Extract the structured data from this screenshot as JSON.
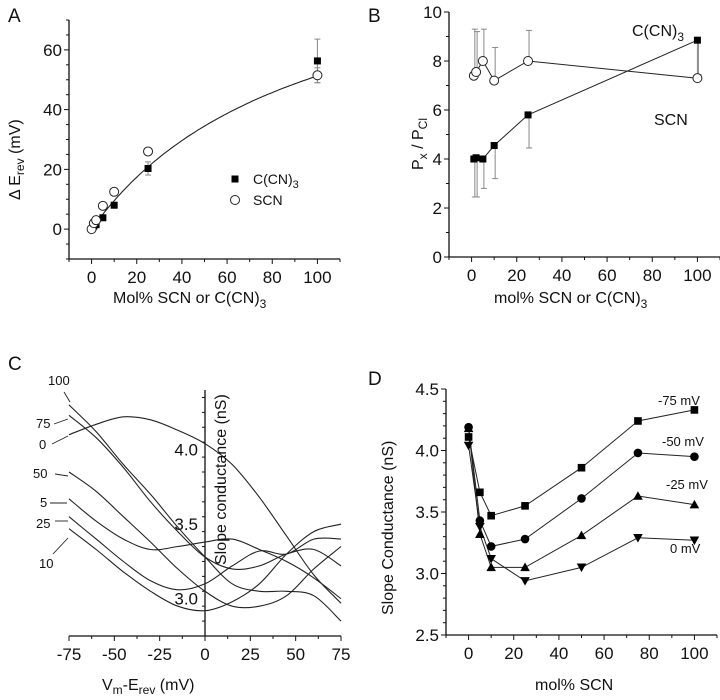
{
  "chart_data": [
    {
      "panel": "A",
      "type": "scatter",
      "title": "",
      "xlabel": "Mol% SCN or C(CN)3",
      "ylabel": "Δ E_rev (mV)",
      "xlim": [
        -10,
        110
      ],
      "ylim": [
        -10,
        70
      ],
      "xticks": [
        0,
        20,
        40,
        60,
        80,
        100
      ],
      "yticks": [
        0,
        20,
        40,
        60
      ],
      "grid": false,
      "legend_position": "center-right",
      "series": [
        {
          "name": "C(CN)3",
          "marker": "filled-square",
          "x": [
            1,
            2,
            5,
            10,
            25,
            100
          ],
          "y": [
            1,
            1.5,
            3.8,
            8,
            20.3,
            56.3
          ],
          "err": [
            0,
            0,
            0,
            0,
            2.2,
            7.3
          ]
        },
        {
          "name": "SCN",
          "marker": "open-circle",
          "x": [
            0,
            1,
            2,
            5,
            10,
            25,
            100
          ],
          "y": [
            0,
            2,
            3,
            7.8,
            12.5,
            26,
            51.5
          ],
          "err": [
            0,
            0,
            0,
            0,
            0,
            1,
            2.5
          ]
        }
      ],
      "fit_curve": {
        "name": "SCN fit",
        "note": "saturating fit through SCN points"
      }
    },
    {
      "panel": "B",
      "type": "line",
      "xlabel": "mol% SCN or C(CN)3",
      "ylabel": "P_x / P_Cl",
      "xlim": [
        -10,
        110
      ],
      "ylim": [
        0,
        10
      ],
      "xticks": [
        0,
        20,
        40,
        60,
        80,
        100
      ],
      "yticks": [
        0,
        2,
        4,
        6,
        8,
        10
      ],
      "grid": false,
      "annotations": [
        {
          "text": "C(CN)3",
          "position": "top-right"
        },
        {
          "text": "SCN",
          "position": "right"
        }
      ],
      "series": [
        {
          "name": "SCN",
          "marker": "open-circle",
          "x": [
            1,
            2,
            5,
            10,
            25,
            100
          ],
          "y": [
            7.4,
            7.55,
            8.0,
            7.2,
            8.0,
            7.3
          ],
          "err": [
            1.9,
            1.65,
            1.3,
            1.35,
            1.25,
            0
          ]
        },
        {
          "name": "C(CN)3",
          "marker": "filled-square",
          "x": [
            1,
            2,
            5,
            10,
            25,
            100
          ],
          "y": [
            4.0,
            4.05,
            4.0,
            4.55,
            5.8,
            8.85
          ],
          "err": [
            1.55,
            1.6,
            1.2,
            1.35,
            1.35,
            1.4
          ]
        }
      ]
    },
    {
      "panel": "C",
      "type": "line",
      "xlabel": "V_m-E_rev (mV)",
      "ylabel": "Slope conductance (nS)",
      "xlim": [
        -75,
        75
      ],
      "ylim": [
        2.75,
        4.4
      ],
      "xticks": [
        -75,
        -50,
        -25,
        0,
        25,
        50,
        75
      ],
      "yticks": [
        3.0,
        3.5,
        4.0
      ],
      "grid": false,
      "curve_labels": [
        "100",
        "75",
        "0",
        "50",
        "5",
        "25",
        "10"
      ],
      "series": [
        {
          "name": "0",
          "x": [
            -75,
            -60,
            -45,
            -30,
            -15,
            0,
            15,
            30,
            45,
            60,
            75
          ],
          "y": [
            4.1,
            4.17,
            4.22,
            4.2,
            4.13,
            4.04,
            3.9,
            3.68,
            3.42,
            3.16,
            2.97
          ]
        },
        {
          "name": "100",
          "x": [
            -75,
            -60,
            -45,
            -30,
            -15,
            0,
            15,
            30,
            45,
            60,
            75
          ],
          "y": [
            4.3,
            4.12,
            3.9,
            3.7,
            3.48,
            3.28,
            3.1,
            3.05,
            3.05,
            3.02,
            2.85
          ]
        },
        {
          "name": "75",
          "x": [
            -75,
            -60,
            -45,
            -30,
            -15,
            0,
            15,
            30,
            45,
            60,
            75
          ],
          "y": [
            4.23,
            4.08,
            3.88,
            3.65,
            3.45,
            3.28,
            3.2,
            3.22,
            3.3,
            3.33,
            3.22
          ]
        },
        {
          "name": "50",
          "x": [
            -75,
            -60,
            -45,
            -30,
            -15,
            0,
            15,
            30,
            45,
            60,
            75
          ],
          "y": [
            3.85,
            3.72,
            3.55,
            3.38,
            3.2,
            3.05,
            2.95,
            2.95,
            3.02,
            3.2,
            3.35
          ]
        },
        {
          "name": "5",
          "x": [
            -75,
            -60,
            -45,
            -30,
            -15,
            0,
            15,
            30,
            45,
            60,
            75
          ],
          "y": [
            3.67,
            3.52,
            3.4,
            3.33,
            3.35,
            3.38,
            3.4,
            3.33,
            3.25,
            3.14,
            3.0
          ]
        },
        {
          "name": "25",
          "x": [
            -75,
            -60,
            -45,
            -30,
            -15,
            0,
            15,
            30,
            45,
            60,
            75
          ],
          "y": [
            3.55,
            3.4,
            3.25,
            3.12,
            3.06,
            3.1,
            3.22,
            3.32,
            3.3,
            3.4,
            3.4
          ]
        },
        {
          "name": "10",
          "x": [
            -75,
            -60,
            -45,
            -30,
            -15,
            0,
            15,
            30,
            45,
            60,
            75
          ],
          "y": [
            3.47,
            3.33,
            3.18,
            3.05,
            2.95,
            2.92,
            2.98,
            3.1,
            3.3,
            3.45,
            3.5
          ]
        }
      ]
    },
    {
      "panel": "D",
      "type": "line",
      "xlabel": "mol% SCN",
      "ylabel": "Slope Conductance (nS)",
      "xlim": [
        -10,
        110
      ],
      "ylim": [
        2.5,
        4.5
      ],
      "xticks": [
        0,
        20,
        40,
        60,
        80,
        100
      ],
      "yticks": [
        2.5,
        3.0,
        3.5,
        4.0,
        4.5
      ],
      "grid": false,
      "categories_x": [
        0,
        5,
        10,
        25,
        50,
        75,
        100
      ],
      "series": [
        {
          "name": "-75 mV",
          "marker": "filled-square",
          "y": [
            4.11,
            3.66,
            3.47,
            3.55,
            3.86,
            4.24,
            4.33
          ]
        },
        {
          "name": "-50 mV",
          "marker": "filled-circle",
          "y": [
            4.19,
            3.43,
            3.22,
            3.28,
            3.61,
            3.98,
            3.95
          ]
        },
        {
          "name": "-25 mV",
          "marker": "filled-triangle-up",
          "y": [
            4.18,
            3.32,
            3.05,
            3.05,
            3.31,
            3.63,
            3.56
          ]
        },
        {
          "name": "0 mV",
          "marker": "filled-triangle-down",
          "y": [
            4.04,
            3.38,
            3.12,
            2.94,
            3.05,
            3.29,
            3.27
          ]
        }
      ]
    }
  ],
  "labels": {
    "panelA": "A",
    "panelB": "B",
    "panelC": "C",
    "panelD": "D",
    "A_ylabel_main": "Δ E",
    "A_ylabel_sub": "rev",
    "A_ylabel_tail": " (mV)",
    "A_xlabel_main": "Mol% SCN or C(CN)",
    "A_xlabel_sub": "3",
    "A_leg1_main": "C(CN)",
    "A_leg1_sub": "3",
    "A_leg2": "SCN",
    "B_ylabel_main1": "P",
    "B_ylabel_sub1": "x",
    "B_ylabel_mid": " / P",
    "B_ylabel_sub2": "Cl",
    "B_xlabel_main": "mol% SCN or C(CN)",
    "B_xlabel_sub": "3",
    "B_ann1_main": "C(CN)",
    "B_ann1_sub": "3",
    "B_ann2": "SCN",
    "C_ylabel": "Slope conductance (nS)",
    "C_xlabel_main1": "V",
    "C_xlabel_sub1": "m",
    "C_xlabel_mid": "-E",
    "C_xlabel_sub2": "rev",
    "C_xlabel_tail": " (mV)",
    "D_ylabel": "Slope Conductance (nS)",
    "D_xlabel": "mol% SCN",
    "D_series_labels": [
      "-75 mV",
      "-50 mV",
      "-25 mV",
      "0 mV"
    ]
  }
}
